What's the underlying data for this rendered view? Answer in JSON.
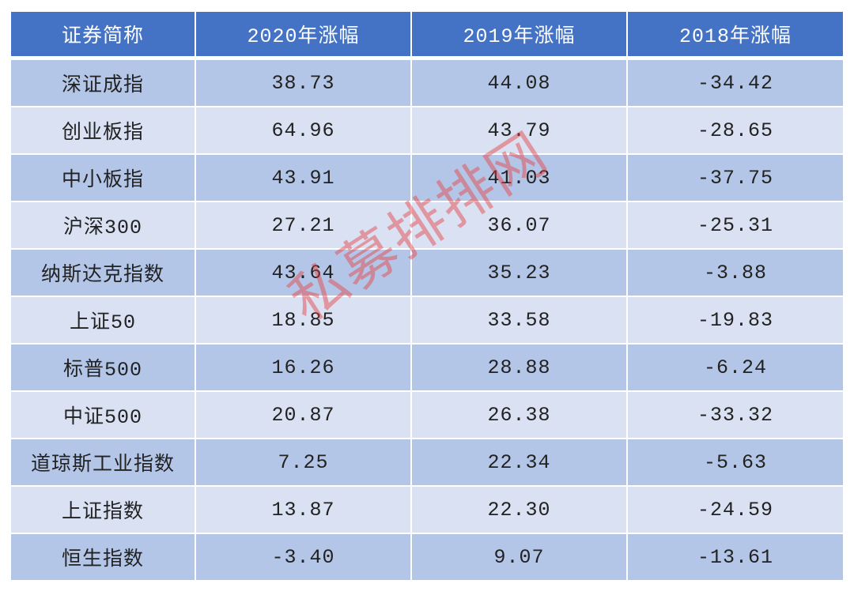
{
  "table": {
    "headers": [
      "证券简称",
      "2020年涨幅",
      "2019年涨幅",
      "2018年涨幅"
    ],
    "rows": [
      [
        "深证成指",
        "38.73",
        "44.08",
        "-34.42"
      ],
      [
        "创业板指",
        "64.96",
        "43.79",
        "-28.65"
      ],
      [
        "中小板指",
        "43.91",
        "41.03",
        "-37.75"
      ],
      [
        "沪深300",
        "27.21",
        "36.07",
        "-25.31"
      ],
      [
        "纳斯达克指数",
        "43.64",
        "35.23",
        "-3.88"
      ],
      [
        "上证50",
        "18.85",
        "33.58",
        "-19.83"
      ],
      [
        "标普500",
        "16.26",
        "28.88",
        "-6.24"
      ],
      [
        "中证500",
        "20.87",
        "26.38",
        "-33.32"
      ],
      [
        "道琼斯工业指数",
        "7.25",
        "22.34",
        "-5.63"
      ],
      [
        "上证指数",
        "13.87",
        "22.30",
        "-24.59"
      ],
      [
        "恒生指数",
        "-3.40",
        "9.07",
        "-13.61"
      ]
    ]
  },
  "watermark": "私募排排网",
  "colors": {
    "header": "#4472c4",
    "row_dark": "#b4c6e7",
    "row_light": "#d9e1f2",
    "watermark": "#e63c3c"
  }
}
